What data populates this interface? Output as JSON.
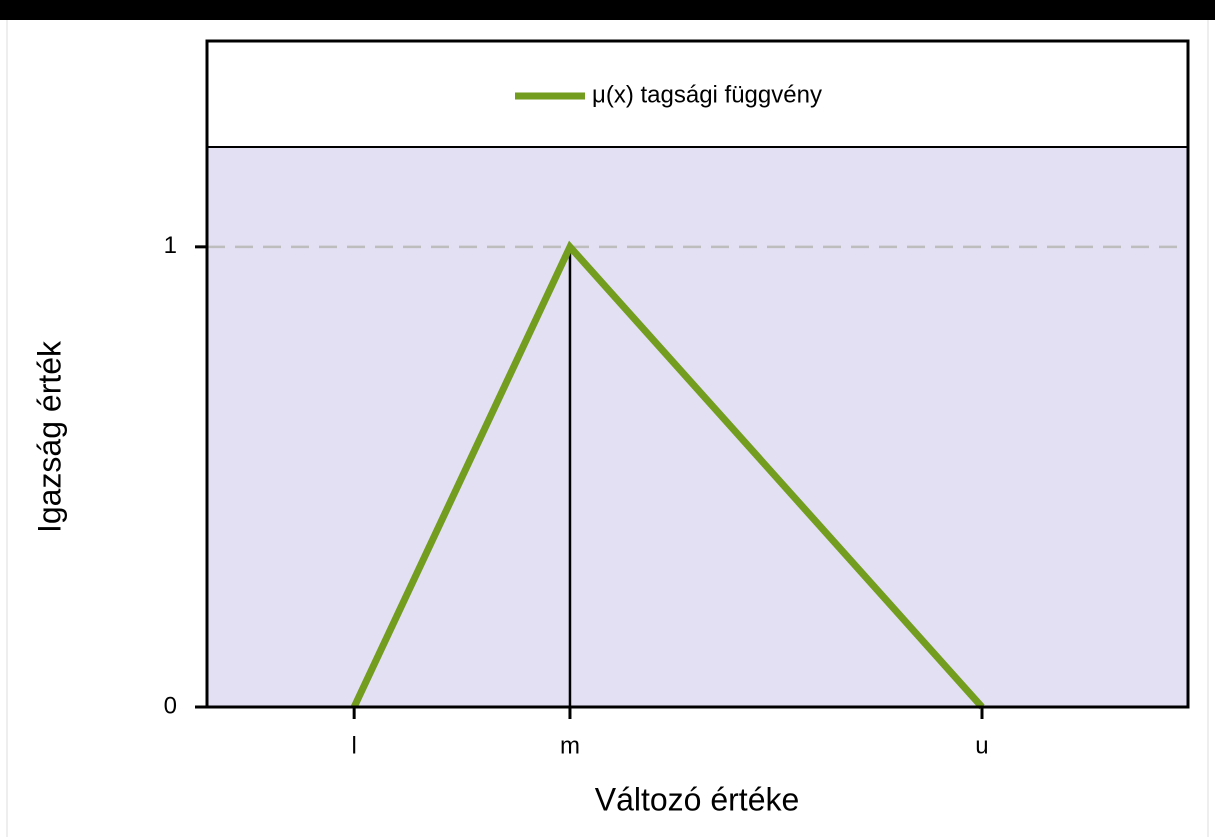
{
  "chart_data": {
    "type": "line",
    "xlabel": "Változó értéke",
    "ylabel": "Igazság érték",
    "x": [
      1.5,
      3.7,
      7.9
    ],
    "series": [
      {
        "name": "μ(x) tagsági függvény",
        "color": "#739d1e",
        "values": [
          0,
          1,
          0
        ]
      }
    ],
    "xlim": [
      0,
      10
    ],
    "xticks": [
      {
        "value": 1.5,
        "label": "l"
      },
      {
        "value": 3.7,
        "label": "m"
      },
      {
        "value": 7.9,
        "label": "u"
      }
    ],
    "ylim": [
      0,
      1.217
    ],
    "yticks": [
      0,
      1
    ],
    "hline": 1,
    "vline": 3.7,
    "background": "#e3e0f3",
    "legend": "top"
  }
}
